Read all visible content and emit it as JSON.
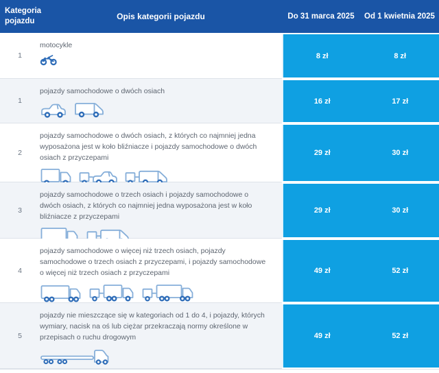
{
  "table": {
    "header": {
      "col_category": "Kategoria pojazdu",
      "col_description": "Opis kategorii pojazdu",
      "col_price1": "Do 31 marca 2025",
      "col_price2": "Od 1 kwietnia 2025"
    },
    "rows": [
      {
        "category": "1",
        "description": "motocykle",
        "icons": [
          "motorcycle-icon"
        ],
        "price_until_march": "8 zł",
        "price_from_april": "8 zł"
      },
      {
        "category": "1",
        "description": "pojazdy samochodowe o dwóch osiach",
        "icons": [
          "car-icon",
          "van-icon"
        ],
        "price_until_march": "16 zł",
        "price_from_april": "17 zł"
      },
      {
        "category": "2",
        "description": "pojazdy samochodowe o dwóch osiach, z których co najmniej jedna wyposażona jest w koło bliźniacze i pojazdy samochodowe o dwóch osiach z przyczepami",
        "icons": [
          "box-truck-icon",
          "car-with-trailer-icon",
          "van-with-trailer-icon"
        ],
        "price_until_march": "29 zł",
        "price_from_april": "30 zł"
      },
      {
        "category": "3",
        "description": "pojazdy samochodowe o trzech osiach i pojazdy samochodowe o dwóch osiach, z których co najmniej jedna wyposażona jest w koło bliźniacze z przyczepami",
        "icons": [
          "three-axle-truck-icon",
          "van-with-trailer-icon"
        ],
        "price_until_march": "29 zł",
        "price_from_april": "30 zł"
      },
      {
        "category": "4",
        "description": "pojazdy samochodowe o więcej niż trzech osiach, pojazdy samochodowe o trzech osiach z przyczepami, i pojazdy samochodowe o więcej niż trzech osiach z przyczepami",
        "icons": [
          "four-axle-truck-icon",
          "truck-with-trailer-icon",
          "large-truck-with-trailer-icon"
        ],
        "price_until_march": "49 zł",
        "price_from_april": "52 zł"
      },
      {
        "category": "5",
        "description": "pojazdy nie mieszczące się w kategoriach od 1 do 4, i pojazdy, których wymiary, nacisk na oś lub ciężar przekraczają normy określone w przepisach o ruchu drogowym",
        "icons": [
          "long-trailer-truck-icon"
        ],
        "price_until_march": "49 zł",
        "price_from_april": "52 zł"
      }
    ],
    "colors": {
      "header_bg": "#1a55a6",
      "price_bg": "#0fa0e2",
      "row_alt_bg": "#f1f4f8",
      "row_bg": "#ffffff",
      "divider": "#dde2e9",
      "text": "#5d6570",
      "icon_outline": "#85aed9",
      "icon_wheel": "#2f6db8"
    }
  }
}
